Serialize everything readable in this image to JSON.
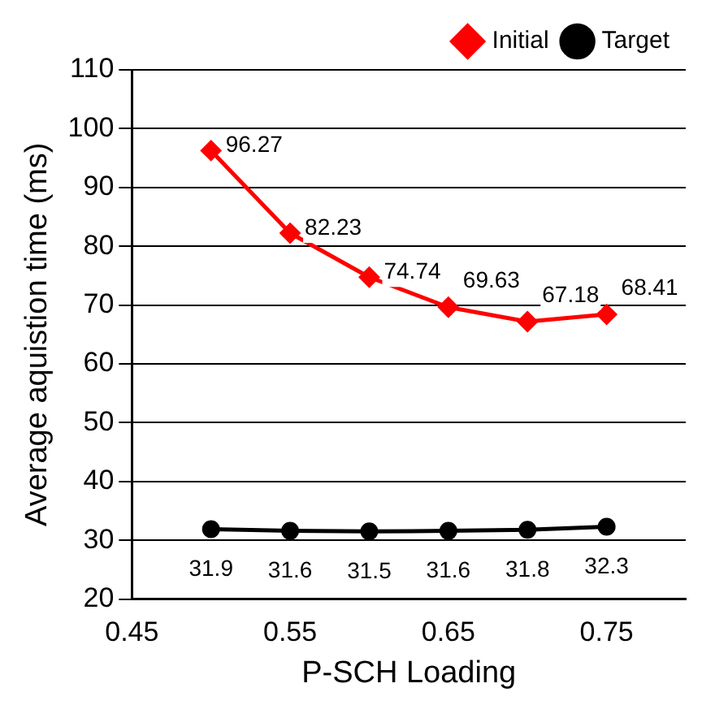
{
  "chart_data": {
    "type": "line",
    "xlabel": "P-SCH Loading",
    "ylabel": "Average aquistion time (ms)",
    "x": [
      0.5,
      0.55,
      0.6,
      0.65,
      0.7,
      0.75
    ],
    "series": [
      {
        "name": "Initial",
        "color": "#ff0000",
        "marker": "diamond",
        "values": [
          96.27,
          82.23,
          74.74,
          69.63,
          67.18,
          68.41
        ]
      },
      {
        "name": "Target",
        "color": "#000000",
        "marker": "circle",
        "values": [
          31.9,
          31.6,
          31.5,
          31.6,
          31.8,
          32.3
        ]
      }
    ],
    "xlim": [
      0.45,
      0.8
    ],
    "xticks": [
      0.45,
      0.55,
      0.65,
      0.75
    ],
    "ylim": [
      20,
      110
    ],
    "yticks": [
      20,
      30,
      40,
      50,
      60,
      70,
      80,
      90,
      100,
      110
    ],
    "grid": "y",
    "legend": "top right",
    "data_labels": true,
    "line_style": "solid"
  }
}
